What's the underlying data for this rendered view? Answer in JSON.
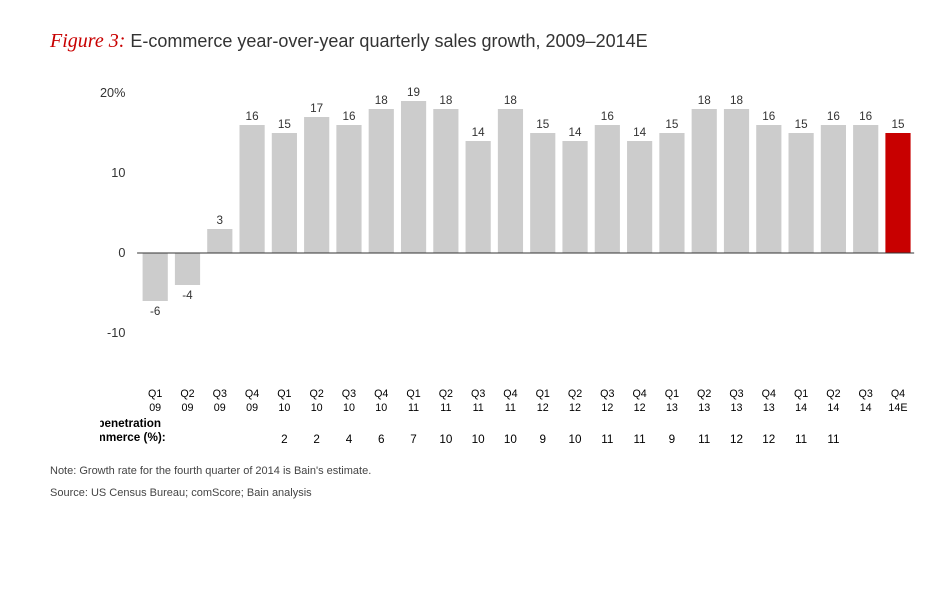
{
  "figure": {
    "label": "Figure 3:",
    "title": "E-commerce year-over-year quarterly sales growth, 2009–2014E",
    "type": "bar",
    "ylabel_suffix": "%",
    "ylim": [
      -10,
      20
    ],
    "yticks": [
      -10,
      0,
      10,
      20
    ],
    "categories": [
      {
        "q": "Q1",
        "y": "09"
      },
      {
        "q": "Q2",
        "y": "09"
      },
      {
        "q": "Q3",
        "y": "09"
      },
      {
        "q": "Q4",
        "y": "09"
      },
      {
        "q": "Q1",
        "y": "10"
      },
      {
        "q": "Q2",
        "y": "10"
      },
      {
        "q": "Q3",
        "y": "10"
      },
      {
        "q": "Q4",
        "y": "10"
      },
      {
        "q": "Q1",
        "y": "11"
      },
      {
        "q": "Q2",
        "y": "11"
      },
      {
        "q": "Q3",
        "y": "11"
      },
      {
        "q": "Q4",
        "y": "11"
      },
      {
        "q": "Q1",
        "y": "12"
      },
      {
        "q": "Q2",
        "y": "12"
      },
      {
        "q": "Q3",
        "y": "12"
      },
      {
        "q": "Q4",
        "y": "12"
      },
      {
        "q": "Q1",
        "y": "13"
      },
      {
        "q": "Q2",
        "y": "13"
      },
      {
        "q": "Q3",
        "y": "13"
      },
      {
        "q": "Q4",
        "y": "13"
      },
      {
        "q": "Q1",
        "y": "14"
      },
      {
        "q": "Q2",
        "y": "14"
      },
      {
        "q": "Q3",
        "y": "14"
      },
      {
        "q": "Q4",
        "y": "14E"
      }
    ],
    "values": [
      -6,
      -4,
      3,
      16,
      15,
      17,
      16,
      18,
      19,
      18,
      14,
      18,
      15,
      14,
      16,
      14,
      15,
      18,
      18,
      16,
      15,
      16,
      16,
      15
    ],
    "highlight_index": 23,
    "bar_color": "#cccccc",
    "highlight_color": "#c80000",
    "background_color": "#ffffff",
    "bar_width_ratio": 0.78,
    "mobile": {
      "title1": "Mobile penetration",
      "title2": "of e-commerce (%):",
      "values": [
        null,
        null,
        null,
        null,
        2,
        2,
        4,
        6,
        7,
        10,
        10,
        10,
        9,
        10,
        11,
        11,
        9,
        11,
        12,
        12,
        11,
        11,
        null,
        null
      ]
    },
    "note": "Note: Growth rate for the fourth quarter of 2014 is Bain's estimate.",
    "source": "Source: US Census Bureau; comScore; Bain analysis"
  }
}
